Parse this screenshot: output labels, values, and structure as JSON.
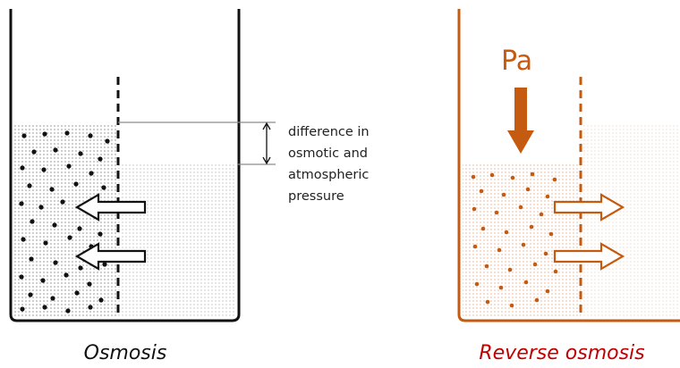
{
  "colors": {
    "osmosis": "#111111",
    "reverse": "#c55a11",
    "reverse_title": "#c00000",
    "guide": "#8c8c8c"
  },
  "left": {
    "caption_lines": [
      "difference in",
      "osmotic and",
      "atmospheric",
      "pressure"
    ],
    "title": "Osmosis"
  },
  "right": {
    "pressure_label": "Pa",
    "title": "Reverse osmosis"
  },
  "icons": [
    "membrane",
    "solute-particle",
    "arrow-left-outline",
    "arrow-right-outline",
    "arrow-down-solid",
    "dimension-arrow"
  ]
}
